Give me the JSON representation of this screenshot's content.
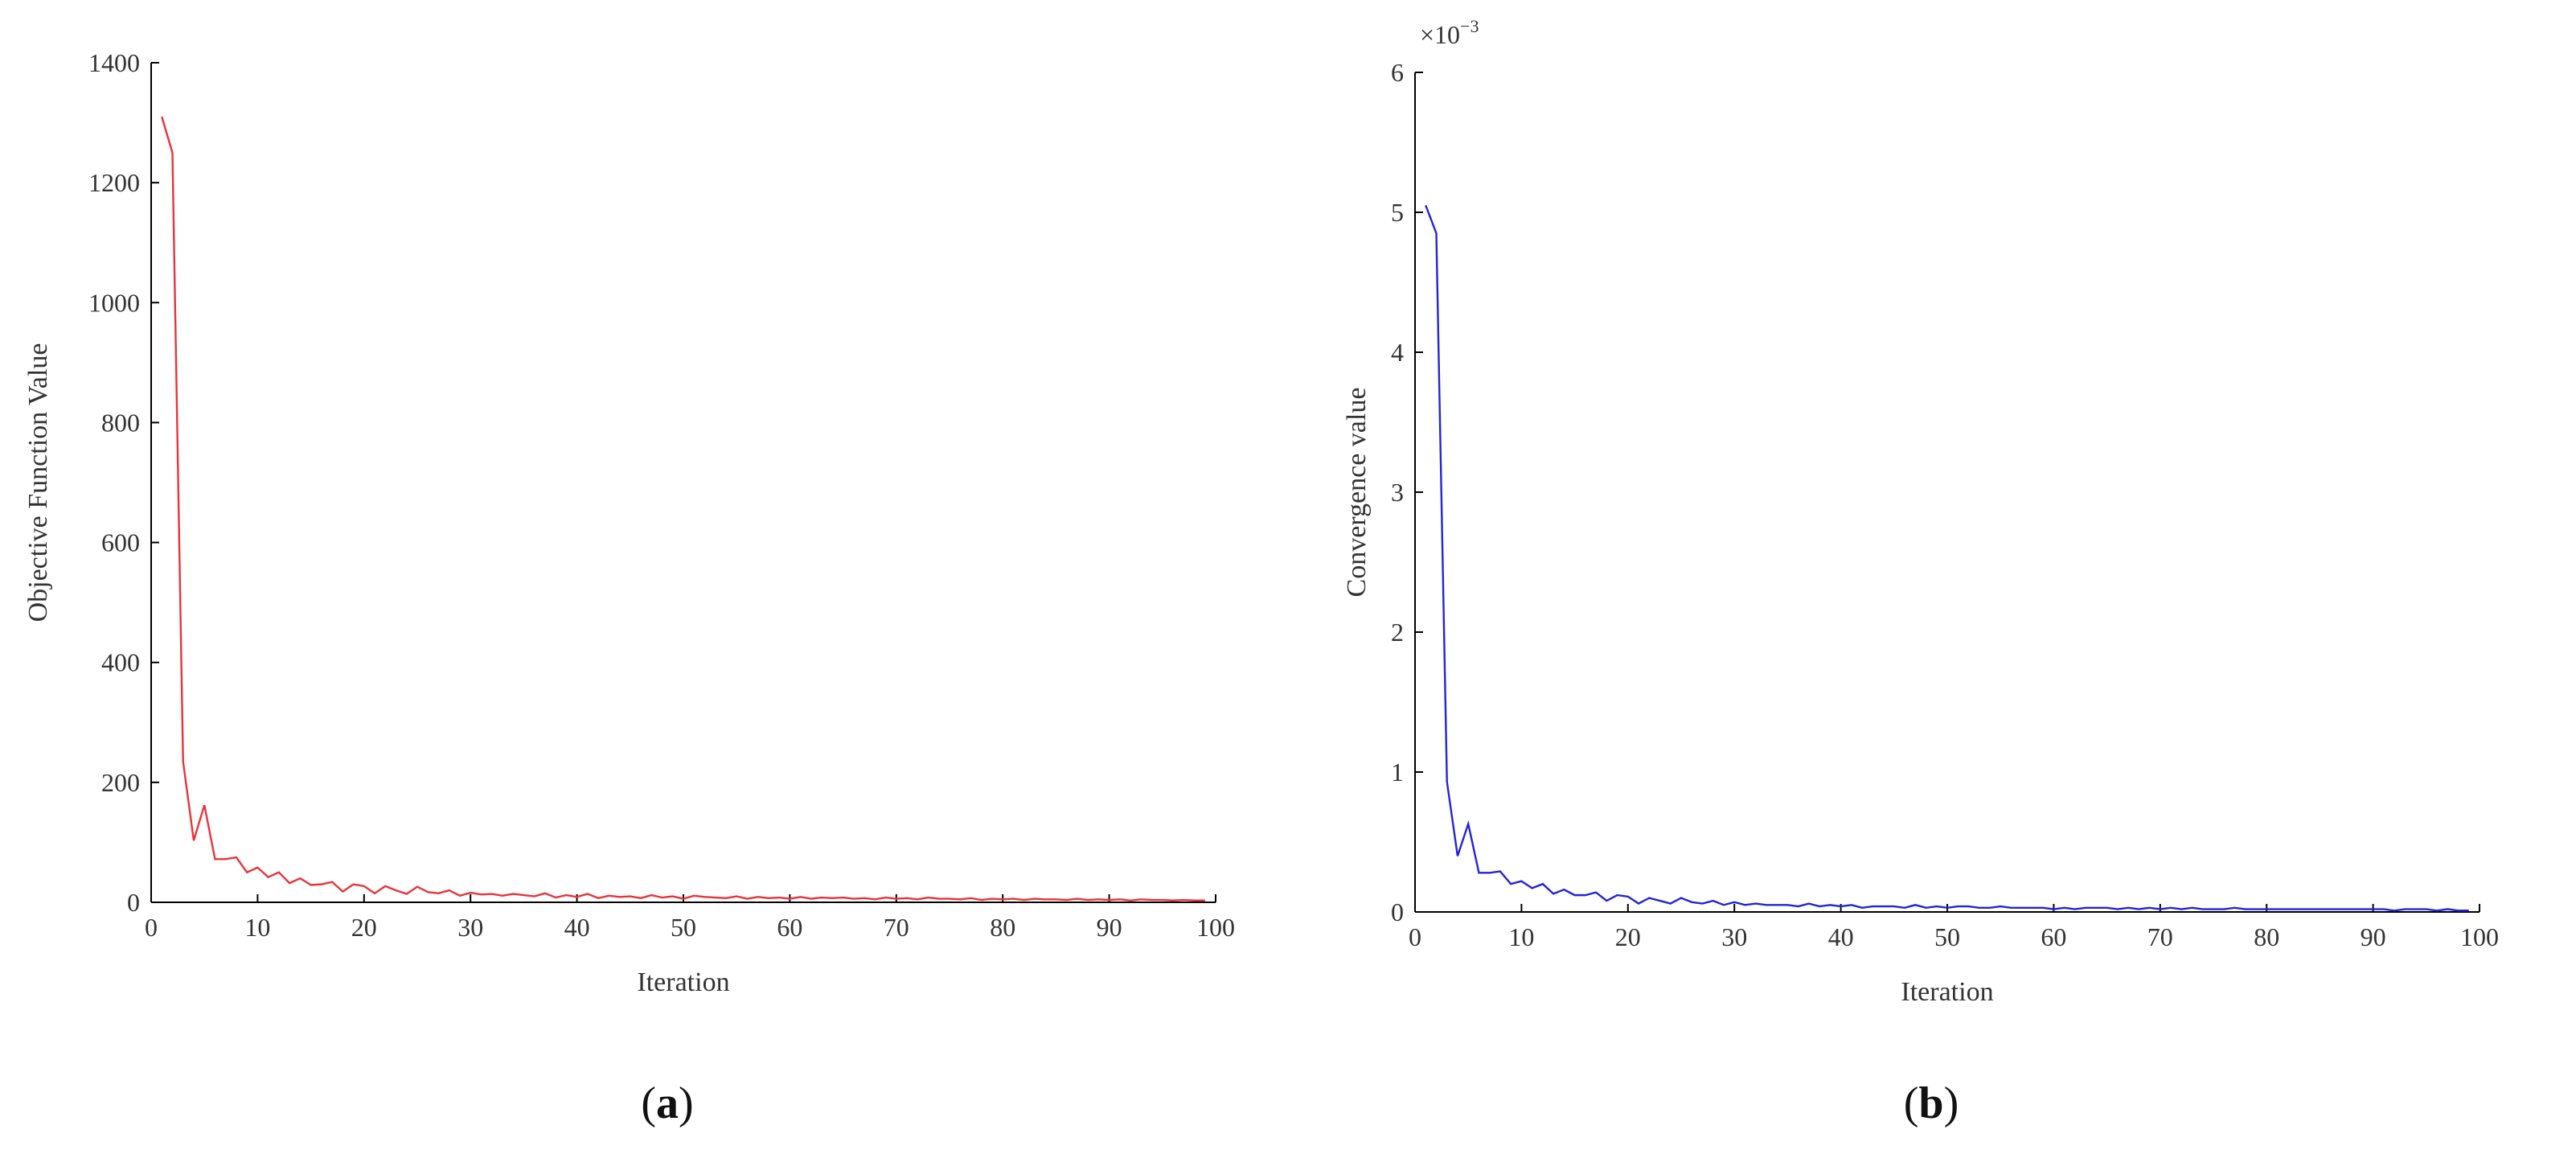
{
  "chart_data": [
    {
      "type": "line",
      "panel_label": "a",
      "xlabel": "Iteration",
      "ylabel": "Objective Function Value",
      "xlim": [
        0,
        100
      ],
      "ylim": [
        0,
        1400
      ],
      "xticks": [
        0,
        10,
        20,
        30,
        40,
        50,
        60,
        70,
        80,
        90,
        100
      ],
      "yticks": [
        0,
        200,
        400,
        600,
        800,
        1000,
        1200,
        1400
      ],
      "y_multiplier": "",
      "grid": false,
      "line_color": "#e8333a",
      "series": [
        {
          "x": [
            1,
            2,
            3,
            4,
            5,
            6,
            7,
            8,
            9,
            10,
            11,
            12,
            13,
            14,
            15,
            16,
            17,
            18,
            19,
            20,
            21,
            22,
            23,
            24,
            25,
            26,
            27,
            28,
            29,
            30,
            31,
            32,
            33,
            34,
            35,
            36,
            37,
            38,
            39,
            40,
            41,
            42,
            43,
            44,
            45,
            46,
            47,
            48,
            49,
            50,
            51,
            52,
            53,
            54,
            55,
            56,
            57,
            58,
            59,
            60,
            61,
            62,
            63,
            64,
            65,
            66,
            67,
            68,
            69,
            70,
            71,
            72,
            73,
            74,
            75,
            76,
            77,
            78,
            79,
            80,
            81,
            82,
            83,
            84,
            85,
            86,
            87,
            88,
            89,
            90,
            91,
            92,
            93,
            94,
            95,
            96,
            97,
            98,
            99
          ],
          "values": [
            1310,
            1250,
            235,
            103,
            162,
            72,
            72,
            75,
            50,
            58,
            42,
            50,
            32,
            40,
            29,
            30,
            34,
            18,
            30,
            27,
            15,
            27,
            20,
            14,
            26,
            17,
            15,
            20,
            11,
            16,
            13,
            14,
            11,
            14,
            12,
            10,
            15,
            8,
            12,
            9,
            14,
            7,
            11,
            9,
            10,
            7,
            12,
            8,
            10,
            6,
            11,
            9,
            8,
            7,
            10,
            6,
            9,
            7,
            8,
            6,
            9,
            6,
            8,
            7,
            8,
            6,
            7,
            5,
            8,
            6,
            7,
            5,
            8,
            6,
            6,
            5,
            7,
            4,
            6,
            5,
            6,
            4,
            6,
            5,
            5,
            4,
            6,
            4,
            5,
            4,
            5,
            3,
            5,
            4,
            4,
            3,
            4,
            3,
            3
          ]
        }
      ]
    },
    {
      "type": "line",
      "panel_label": "b",
      "xlabel": "Iteration",
      "ylabel": "Convergence value",
      "xlim": [
        0,
        100
      ],
      "ylim": [
        0,
        6
      ],
      "xticks": [
        0,
        10,
        20,
        30,
        40,
        50,
        60,
        70,
        80,
        90,
        100
      ],
      "yticks": [
        0,
        1,
        2,
        3,
        4,
        5,
        6
      ],
      "y_multiplier_base": "×10",
      "y_multiplier_exp": "−3",
      "grid": false,
      "line_color": "#2323d9",
      "series": [
        {
          "x": [
            1,
            2,
            3,
            4,
            5,
            6,
            7,
            8,
            9,
            10,
            11,
            12,
            13,
            14,
            15,
            16,
            17,
            18,
            19,
            20,
            21,
            22,
            23,
            24,
            25,
            26,
            27,
            28,
            29,
            30,
            31,
            32,
            33,
            34,
            35,
            36,
            37,
            38,
            39,
            40,
            41,
            42,
            43,
            44,
            45,
            46,
            47,
            48,
            49,
            50,
            51,
            52,
            53,
            54,
            55,
            56,
            57,
            58,
            59,
            60,
            61,
            62,
            63,
            64,
            65,
            66,
            67,
            68,
            69,
            70,
            71,
            72,
            73,
            74,
            75,
            76,
            77,
            78,
            79,
            80,
            81,
            82,
            83,
            84,
            85,
            86,
            87,
            88,
            89,
            90,
            91,
            92,
            93,
            94,
            95,
            96,
            97,
            98,
            99
          ],
          "values": [
            5.05,
            4.85,
            0.93,
            0.4,
            0.63,
            0.28,
            0.28,
            0.29,
            0.2,
            0.22,
            0.17,
            0.2,
            0.13,
            0.16,
            0.12,
            0.12,
            0.14,
            0.08,
            0.12,
            0.11,
            0.06,
            0.1,
            0.08,
            0.06,
            0.1,
            0.07,
            0.06,
            0.08,
            0.05,
            0.07,
            0.05,
            0.06,
            0.05,
            0.05,
            0.05,
            0.04,
            0.06,
            0.04,
            0.05,
            0.04,
            0.05,
            0.03,
            0.04,
            0.04,
            0.04,
            0.03,
            0.05,
            0.03,
            0.04,
            0.03,
            0.04,
            0.04,
            0.03,
            0.03,
            0.04,
            0.03,
            0.03,
            0.03,
            0.03,
            0.02,
            0.03,
            0.02,
            0.03,
            0.03,
            0.03,
            0.02,
            0.03,
            0.02,
            0.03,
            0.02,
            0.03,
            0.02,
            0.03,
            0.02,
            0.02,
            0.02,
            0.03,
            0.02,
            0.02,
            0.02,
            0.02,
            0.02,
            0.02,
            0.02,
            0.02,
            0.02,
            0.02,
            0.02,
            0.02,
            0.02,
            0.02,
            0.01,
            0.02,
            0.02,
            0.02,
            0.01,
            0.02,
            0.01,
            0.01
          ]
        }
      ]
    }
  ]
}
